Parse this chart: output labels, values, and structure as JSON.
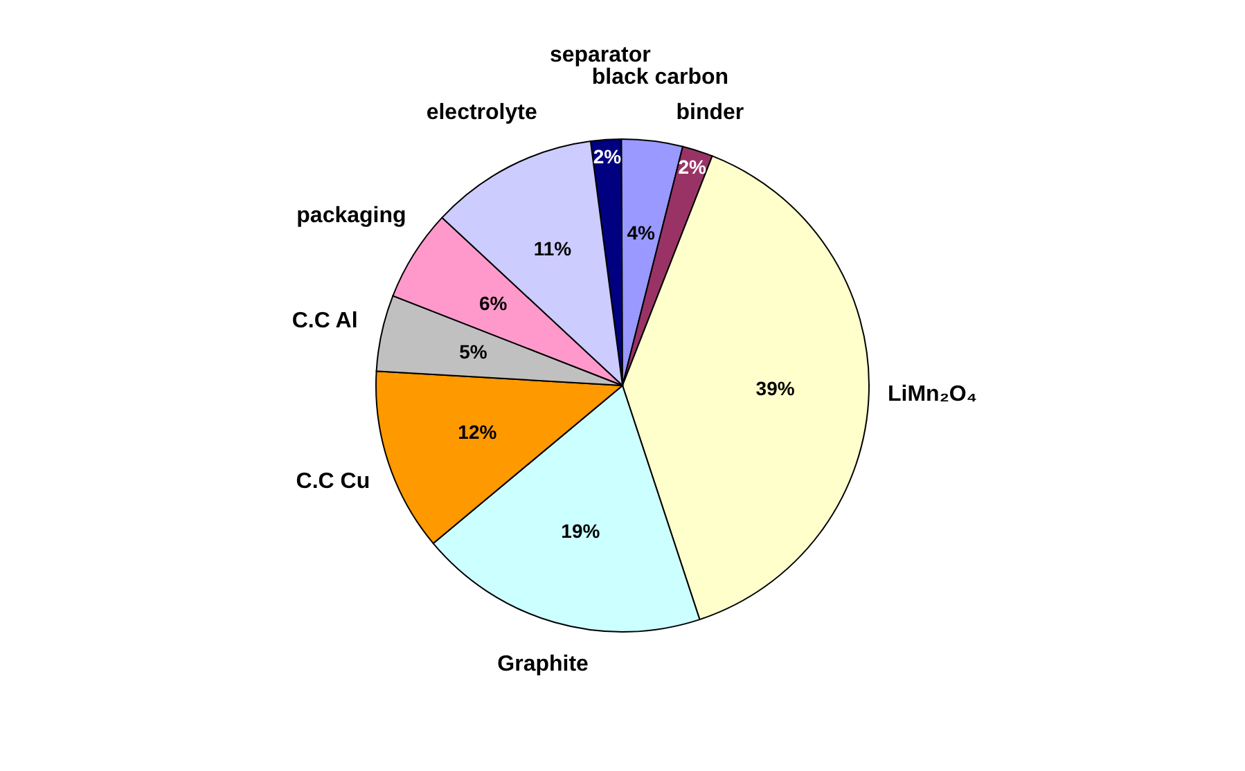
{
  "chart_data": {
    "type": "pie",
    "categories": [
      "separator",
      "black carbon",
      "binder",
      "LiMn₂O₄",
      "Graphite",
      "C.C Cu",
      "C.C Al",
      "packaging",
      "electrolyte"
    ],
    "values": [
      2,
      4,
      2,
      39,
      19,
      12,
      5,
      6,
      11
    ],
    "value_labels": [
      "2%",
      "4%",
      "2%",
      "39%",
      "19%",
      "12%",
      "5%",
      "6%",
      "11%"
    ],
    "colors": [
      "#000080",
      "#9999ff",
      "#993366",
      "#ffffcc",
      "#ccffff",
      "#ff9900",
      "#c0c0c0",
      "#ff99cc",
      "#ccccff"
    ],
    "legend": false
  }
}
